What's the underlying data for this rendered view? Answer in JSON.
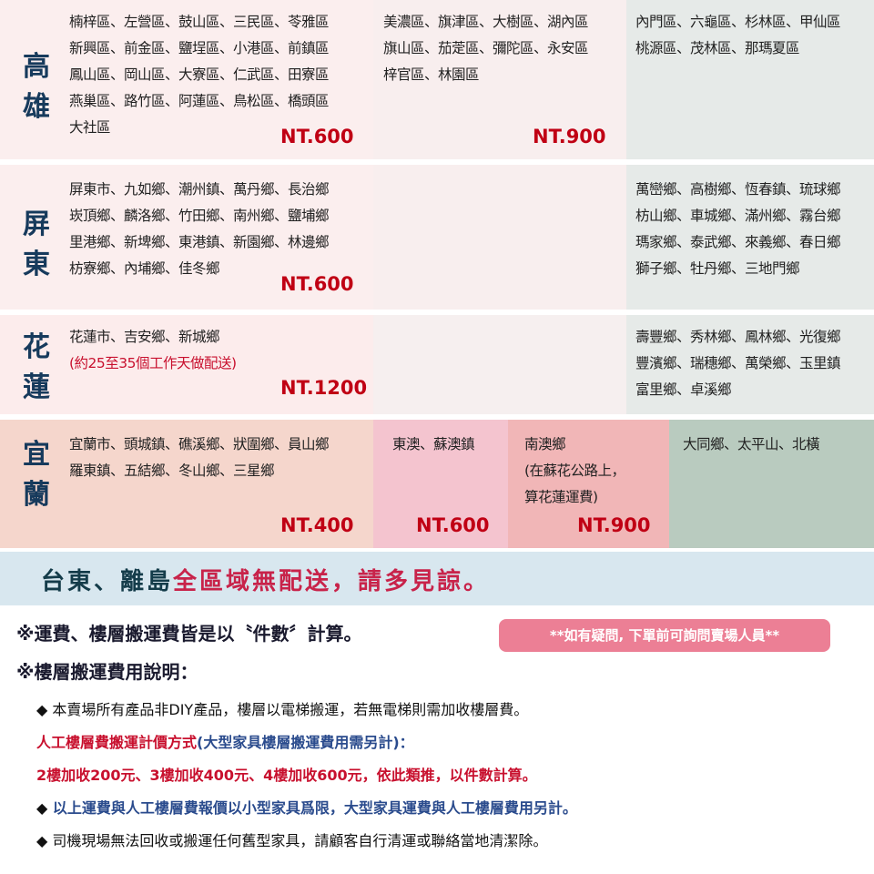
{
  "kaohsiung": {
    "label": "高雄",
    "col1": [
      "楠梓區、左營區、鼓山區、三民區、苓雅區",
      "新興區、前金區、鹽埕區、小港區、前鎮區",
      "鳳山區、岡山區、大寮區、仁武區、田寮區",
      "燕巢區、路竹區、阿蓮區、鳥松區、橋頭區",
      "大社區"
    ],
    "price1": "NT.600",
    "col2": [
      "美濃區、旗津區、大樹區、湖內區",
      "旗山區、茄萣區、彌陀區、永安區",
      "梓官區、林園區"
    ],
    "price2": "NT.900",
    "col3": [
      "內門區、六龜區、杉林區、甲仙區",
      "桃源區、茂林區、那瑪夏區"
    ]
  },
  "pingtung": {
    "label": "屏東",
    "col1": [
      "屏東市、九如鄉、潮州鎮、萬丹鄉、長治鄉",
      "崁頂鄉、麟洛鄉、竹田鄉、南州鄉、鹽埔鄉",
      "里港鄉、新埤鄉、東港鎮、新園鄉、林邊鄉",
      "枋寮鄉、內埔鄉、佳冬鄉"
    ],
    "price1": "NT.600",
    "col3": [
      "萬巒鄉、高樹鄉、恆春鎮、琉球鄉",
      "枋山鄉、車城鄉、滿州鄉、霧台鄉",
      "瑪家鄉、泰武鄉、來義鄉、春日鄉",
      "獅子鄉、牡丹鄉、三地門鄉"
    ]
  },
  "hualien": {
    "label": "花蓮",
    "col1": [
      "花蓮市、吉安鄉、新城鄉"
    ],
    "note": "(約25至35個工作天做配送)",
    "price1": "NT.1200",
    "col3": [
      "壽豐鄉、秀林鄉、鳳林鄉、光復鄉",
      "豐濱鄉、瑞穗鄉、萬榮鄉、玉里鎮",
      "富里鄉、卓溪鄉"
    ]
  },
  "yilan": {
    "label": "宜蘭",
    "col1": [
      "宜蘭市、頭城鎮、礁溪鄉、狀圍鄉、員山鄉",
      "羅東鎮、五結鄉、冬山鄉、三星鄉"
    ],
    "price1": "NT.400",
    "col2": [
      "東澳、蘇澳鎮"
    ],
    "price2": "NT.600",
    "col3": [
      "南澳鄉",
      "(在蘇花公路上，",
      " 算花蓮運費)"
    ],
    "price3": "NT.900",
    "col4": [
      "大同鄉、太平山、北橫"
    ]
  },
  "banner": {
    "part1": "台東、離島",
    "part2": "全區域無配送，請多見諒",
    "part3": "。"
  },
  "notes": {
    "line1": "※運費、樓層搬運費皆是以〝件數〞計算。",
    "line2": "※樓層搬運費用說明：",
    "badge": "**如有疑問, 下單前可詢問賣場人員**",
    "b1": "◆ 本賣場所有產品非DIY產品，樓層以電梯搬運，若無電梯則需加收樓層費。",
    "r1a": "人工樓層費搬運計價方式",
    "r1b": "(大型家具樓層搬運費用需另計)：",
    "r2": "2樓加收200元、3樓加收400元、4樓加收600元，依此類推，以件數計算。",
    "b2a": "◆ ",
    "b2b": "以上運費與人工樓層費報價以小型家具爲限，大型家具運費與人工樓層費用另計。",
    "b3": "◆ 司機現場無法回收或搬運任何舊型家具，請顧客自行清運或聯絡當地清潔除。"
  },
  "colors": {
    "pink": "#fbeeee",
    "grey": "#e6eae8",
    "price": "#c00014",
    "navy": "#163a5c",
    "banner": "#d8e7ef",
    "badge": "#ec7f95"
  }
}
